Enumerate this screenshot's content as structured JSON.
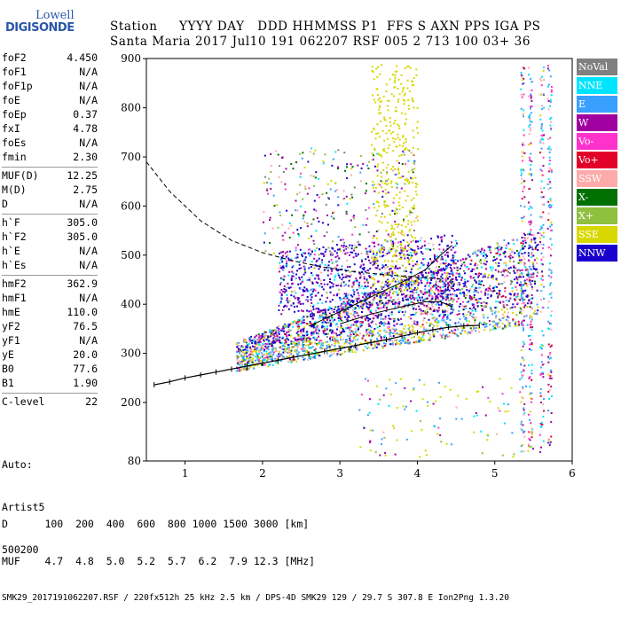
{
  "logo": {
    "line1": "Lowell",
    "line2": "DIGISONDE"
  },
  "header": {
    "line1": "Station     YYYY DAY   DDD HHMMSS P1  FFS S AXN PPS IGA PS",
    "line2": "Santa Maria 2017 Jul10 191 062207 RSF 005 2 713 100 03+ 36"
  },
  "params": [
    {
      "k": "foF2",
      "v": "4.450"
    },
    {
      "k": "foF1",
      "v": "N/A"
    },
    {
      "k": "foF1p",
      "v": "N/A"
    },
    {
      "k": "foE",
      "v": "N/A"
    },
    {
      "k": "foEp",
      "v": "0.37"
    },
    {
      "k": "fxI",
      "v": "4.78"
    },
    {
      "k": "foEs",
      "v": "N/A"
    },
    {
      "k": "fmin",
      "v": "2.30"
    },
    {
      "k": "MUF(D)",
      "v": "12.25"
    },
    {
      "k": "M(D)",
      "v": "2.75"
    },
    {
      "k": "D",
      "v": "N/A"
    },
    {
      "k": "h`F",
      "v": "305.0"
    },
    {
      "k": "h`F2",
      "v": "305.0"
    },
    {
      "k": "h`E",
      "v": "N/A"
    },
    {
      "k": "h`Es",
      "v": "N/A"
    },
    {
      "k": "hmF2",
      "v": "362.9"
    },
    {
      "k": "hmF1",
      "v": "N/A"
    },
    {
      "k": "hmE",
      "v": "110.0"
    },
    {
      "k": "yF2",
      "v": "76.5"
    },
    {
      "k": "yF1",
      "v": "N/A"
    },
    {
      "k": "yE",
      "v": "20.0"
    },
    {
      "k": "B0",
      "v": "77.6"
    },
    {
      "k": "B1",
      "v": "1.90"
    },
    {
      "k": "C-level",
      "v": "22"
    }
  ],
  "auto": {
    "line1": "Auto:",
    "line2": "Artist5",
    "line3": "500200"
  },
  "footer": {
    "d_row": "D      100  200  400  600  800 1000 1500 3000 [km]",
    "muf_row": "MUF    4.7  4.8  5.0  5.2  5.7  6.2  7.9 12.3 [MHz]",
    "meta": "SMK29_2017191062207.RSF / 220fx512h 25 kHz 2.5 km / DPS-4D SMK29 129 / 29.7 S 307.8 E Ion2Png 1.3.20"
  },
  "legend": [
    {
      "label": "NoVal",
      "color": "#808080"
    },
    {
      "label": "NNE",
      "color": "#00e5ff"
    },
    {
      "label": "E",
      "color": "#3aa0ff"
    },
    {
      "label": "W",
      "color": "#a000a0"
    },
    {
      "label": "Vo-",
      "color": "#ff33cc"
    },
    {
      "label": "Vo+",
      "color": "#e0002a"
    },
    {
      "label": "SSW",
      "color": "#ffaaaa"
    },
    {
      "label": "X-",
      "color": "#007000"
    },
    {
      "label": "X+",
      "color": "#90c040"
    },
    {
      "label": "SSE",
      "color": "#d8d800"
    },
    {
      "label": "NNW",
      "color": "#1a00cc"
    }
  ],
  "chart_data": {
    "type": "scatter",
    "xlim": [
      0.5,
      6.0
    ],
    "ylim": [
      80,
      900
    ],
    "xticks": [
      1,
      2,
      3,
      4,
      5,
      6
    ],
    "yticks": [
      80,
      200,
      300,
      400,
      500,
      600,
      700,
      800,
      900
    ],
    "trace": [
      [
        0.6,
        236
      ],
      [
        0.8,
        242
      ],
      [
        1.0,
        250
      ],
      [
        1.2,
        256
      ],
      [
        1.4,
        262
      ],
      [
        1.6,
        268
      ],
      [
        1.8,
        274
      ],
      [
        2.0,
        280
      ],
      [
        2.2,
        286
      ],
      [
        2.4,
        292
      ],
      [
        2.6,
        298
      ],
      [
        2.8,
        304
      ],
      [
        3.0,
        310
      ],
      [
        3.2,
        316
      ],
      [
        3.4,
        322
      ],
      [
        3.6,
        328
      ],
      [
        3.8,
        335
      ],
      [
        4.0,
        342
      ],
      [
        4.2,
        348
      ],
      [
        4.4,
        353
      ],
      [
        4.6,
        356
      ],
      [
        4.8,
        357
      ]
    ],
    "dashed": [
      [
        0.5,
        690
      ],
      [
        0.8,
        630
      ],
      [
        1.2,
        570
      ],
      [
        1.6,
        530
      ],
      [
        2.0,
        505
      ],
      [
        2.4,
        488
      ],
      [
        2.8,
        475
      ],
      [
        3.2,
        466
      ],
      [
        3.6,
        460
      ],
      [
        4.0,
        455
      ],
      [
        4.3,
        452
      ]
    ],
    "curve1": [
      [
        2.6,
        355
      ],
      [
        3.0,
        385
      ],
      [
        3.4,
        415
      ],
      [
        3.8,
        445
      ],
      [
        4.1,
        470
      ],
      [
        4.3,
        500
      ],
      [
        4.45,
        520
      ]
    ],
    "curve2": [
      [
        3.0,
        360
      ],
      [
        3.4,
        380
      ],
      [
        3.8,
        395
      ],
      [
        4.1,
        405
      ],
      [
        4.3,
        405
      ],
      [
        4.45,
        395
      ]
    ]
  }
}
